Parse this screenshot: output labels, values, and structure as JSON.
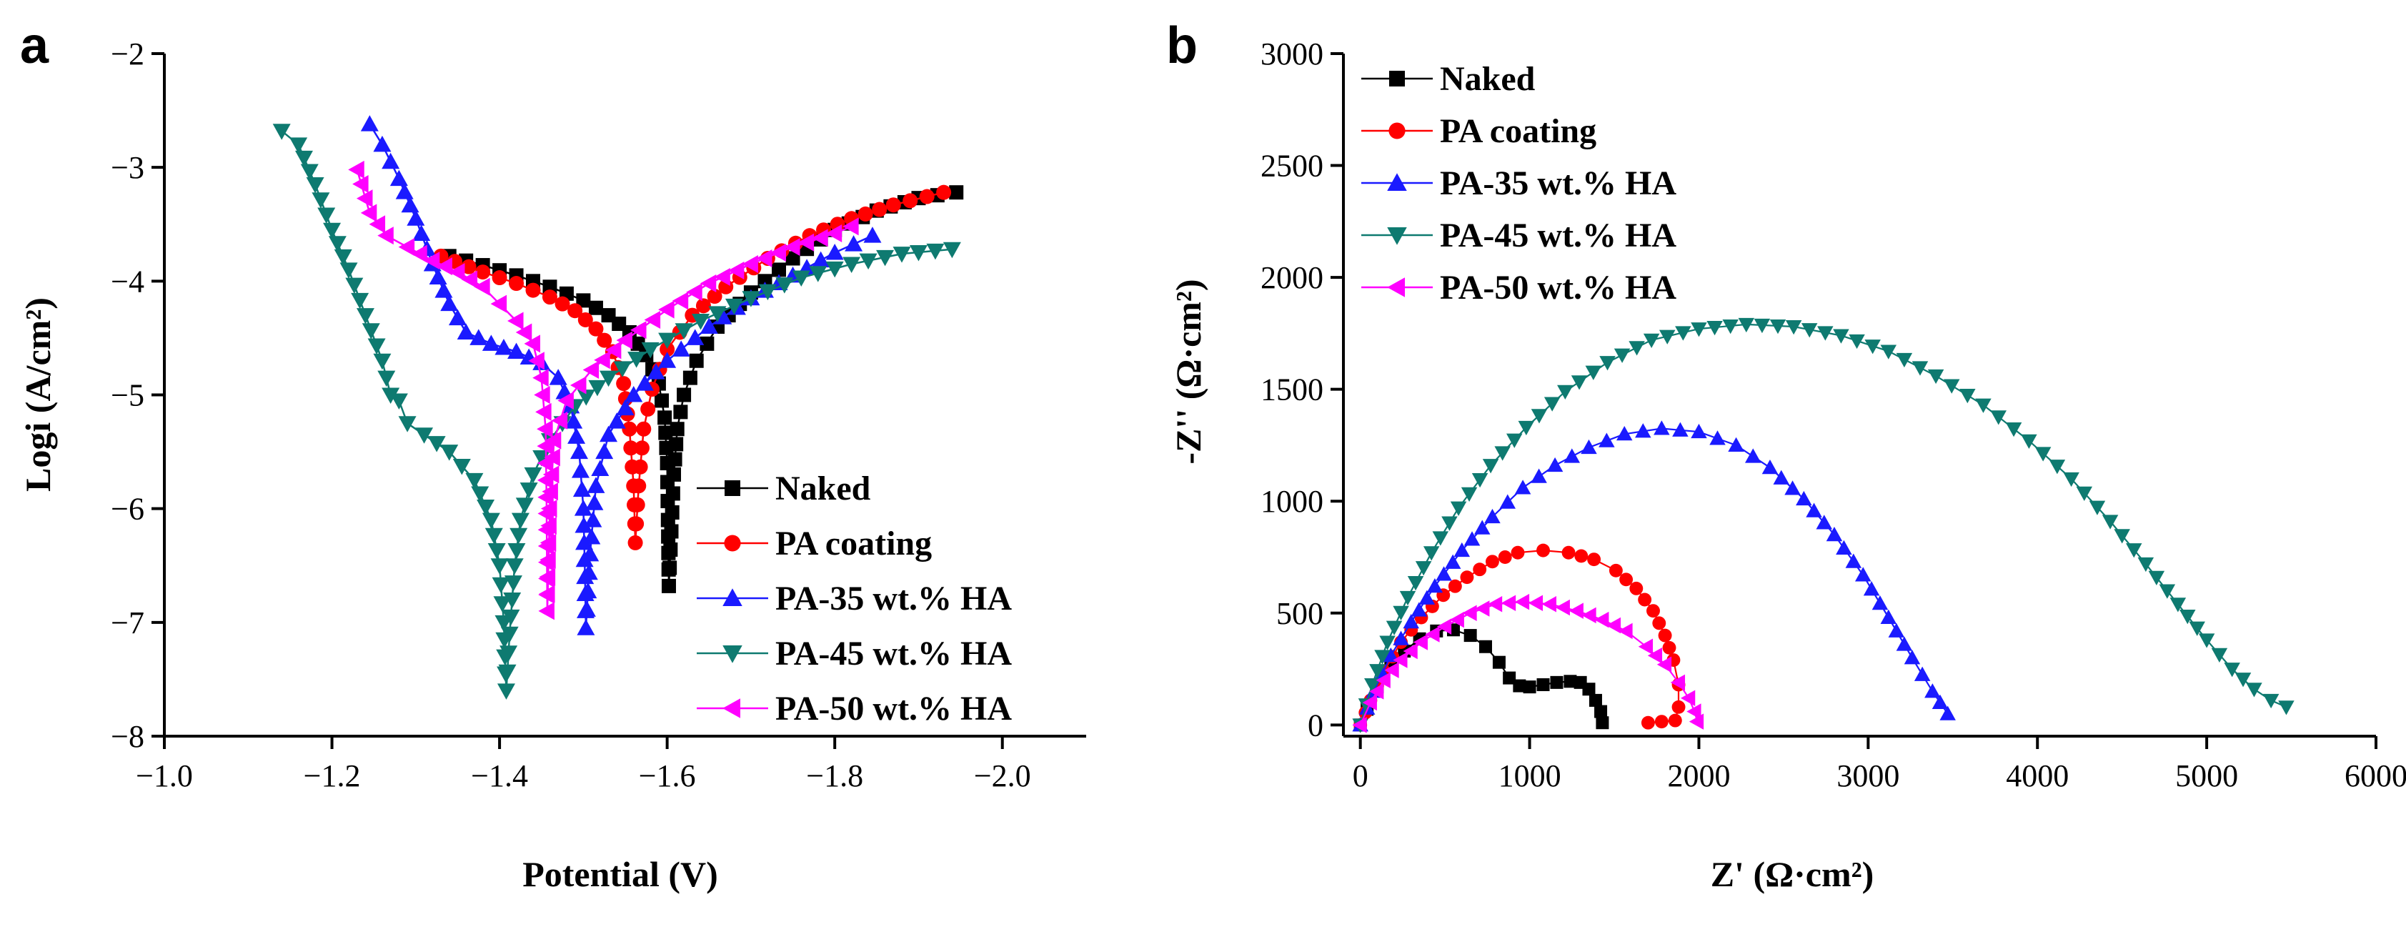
{
  "colors": {
    "naked": "#000000",
    "pa": "#ff0000",
    "pa35": "#1a1aff",
    "pa45": "#0e7a70",
    "pa50": "#ff00ff"
  },
  "chart_data": [
    {
      "id": "a",
      "panel_label": "a",
      "type": "line",
      "title": "",
      "xlabel": "Potential (V)",
      "ylabel": "Logi (A/cm²)",
      "xlim": [
        -1.0,
        -2.1
      ],
      "ylim": [
        -8,
        -2
      ],
      "xticks": [
        -1.0,
        -1.2,
        -1.4,
        -1.6,
        -1.8,
        -2.0
      ],
      "xtick_labels": [
        "−1.0",
        "−1.2",
        "−1.4",
        "−1.6",
        "−1.8",
        "−2.0"
      ],
      "yticks": [
        -8,
        -7,
        -6,
        -5,
        -4,
        -3,
        -2
      ],
      "ytick_labels": [
        "−8",
        "−7",
        "−6",
        "−5",
        "−4",
        "−3",
        "−2"
      ],
      "legend_position": "lower-right",
      "series": [
        {
          "name": "Naked",
          "color_key": "naked",
          "marker": "square",
          "points": [
            [
              -1.34,
              -3.78
            ],
            [
              -1.38,
              -3.86
            ],
            [
              -1.42,
              -3.95
            ],
            [
              -1.46,
              -4.05
            ],
            [
              -1.5,
              -4.17
            ],
            [
              -1.53,
              -4.3
            ],
            [
              -1.555,
              -4.45
            ],
            [
              -1.575,
              -4.65
            ],
            [
              -1.59,
              -4.9
            ],
            [
              -1.597,
              -5.2
            ],
            [
              -1.6,
              -5.6
            ],
            [
              -1.601,
              -6.1
            ],
            [
              -1.602,
              -6.68
            ],
            [
              -1.605,
              -6.2
            ],
            [
              -1.608,
              -5.7
            ],
            [
              -1.612,
              -5.3
            ],
            [
              -1.62,
              -5.0
            ],
            [
              -1.635,
              -4.7
            ],
            [
              -1.66,
              -4.4
            ],
            [
              -1.7,
              -4.1
            ],
            [
              -1.75,
              -3.8
            ],
            [
              -1.8,
              -3.55
            ],
            [
              -1.85,
              -3.38
            ],
            [
              -1.9,
              -3.27
            ],
            [
              -1.945,
              -3.22
            ]
          ]
        },
        {
          "name": "PA coating",
          "color_key": "pa",
          "marker": "circle",
          "points": [
            [
              -1.33,
              -3.78
            ],
            [
              -1.38,
              -3.92
            ],
            [
              -1.42,
              -4.02
            ],
            [
              -1.46,
              -4.14
            ],
            [
              -1.49,
              -4.26
            ],
            [
              -1.515,
              -4.42
            ],
            [
              -1.535,
              -4.62
            ],
            [
              -1.548,
              -4.9
            ],
            [
              -1.555,
              -5.3
            ],
            [
              -1.56,
              -5.8
            ],
            [
              -1.562,
              -6.3
            ],
            [
              -1.566,
              -5.8
            ],
            [
              -1.572,
              -5.3
            ],
            [
              -1.582,
              -4.95
            ],
            [
              -1.6,
              -4.6
            ],
            [
              -1.63,
              -4.3
            ],
            [
              -1.67,
              -4.05
            ],
            [
              -1.72,
              -3.8
            ],
            [
              -1.77,
              -3.6
            ],
            [
              -1.82,
              -3.45
            ],
            [
              -1.87,
              -3.33
            ],
            [
              -1.93,
              -3.22
            ]
          ]
        },
        {
          "name": "PA-35 wt.% HA",
          "color_key": "pa35",
          "marker": "triangle-up",
          "points": [
            [
              -1.245,
              -2.62
            ],
            [
              -1.26,
              -2.8
            ],
            [
              -1.28,
              -3.1
            ],
            [
              -1.3,
              -3.45
            ],
            [
              -1.32,
              -3.85
            ],
            [
              -1.34,
              -4.2
            ],
            [
              -1.36,
              -4.45
            ],
            [
              -1.39,
              -4.55
            ],
            [
              -1.42,
              -4.62
            ],
            [
              -1.45,
              -4.72
            ],
            [
              -1.47,
              -4.85
            ],
            [
              -1.485,
              -5.1
            ],
            [
              -1.495,
              -5.5
            ],
            [
              -1.5,
              -6.0
            ],
            [
              -1.502,
              -6.6
            ],
            [
              -1.503,
              -7.05
            ],
            [
              -1.508,
              -6.4
            ],
            [
              -1.515,
              -5.8
            ],
            [
              -1.53,
              -5.35
            ],
            [
              -1.56,
              -5.0
            ],
            [
              -1.6,
              -4.7
            ],
            [
              -1.65,
              -4.4
            ],
            [
              -1.7,
              -4.15
            ],
            [
              -1.75,
              -3.95
            ],
            [
              -1.8,
              -3.75
            ],
            [
              -1.845,
              -3.6
            ]
          ]
        },
        {
          "name": "PA-45 wt.% HA",
          "color_key": "pa45",
          "marker": "triangle-down",
          "points": [
            [
              -1.14,
              -2.68
            ],
            [
              -1.16,
              -2.8
            ],
            [
              -1.18,
              -3.15
            ],
            [
              -1.2,
              -3.55
            ],
            [
              -1.22,
              -3.9
            ],
            [
              -1.24,
              -4.3
            ],
            [
              -1.26,
              -4.7
            ],
            [
              -1.27,
              -5.0
            ],
            [
              -1.28,
              -5.05
            ],
            [
              -1.29,
              -5.25
            ],
            [
              -1.31,
              -5.35
            ],
            [
              -1.34,
              -5.5
            ],
            [
              -1.37,
              -5.75
            ],
            [
              -1.39,
              -6.1
            ],
            [
              -1.4,
              -6.5
            ],
            [
              -1.405,
              -7.0
            ],
            [
              -1.408,
              -7.6
            ],
            [
              -1.412,
              -7.1
            ],
            [
              -1.418,
              -6.5
            ],
            [
              -1.425,
              -6.1
            ],
            [
              -1.44,
              -5.7
            ],
            [
              -1.46,
              -5.4
            ],
            [
              -1.49,
              -5.1
            ],
            [
              -1.53,
              -4.85
            ],
            [
              -1.58,
              -4.6
            ],
            [
              -1.64,
              -4.35
            ],
            [
              -1.7,
              -4.15
            ],
            [
              -1.76,
              -3.97
            ],
            [
              -1.82,
              -3.85
            ],
            [
              -1.88,
              -3.76
            ],
            [
              -1.94,
              -3.72
            ]
          ]
        },
        {
          "name": "PA-50 wt.% HA",
          "color_key": "pa50",
          "marker": "triangle-left",
          "points": [
            [
              -1.23,
              -3.02
            ],
            [
              -1.245,
              -3.4
            ],
            [
              -1.265,
              -3.6
            ],
            [
              -1.29,
              -3.7
            ],
            [
              -1.32,
              -3.82
            ],
            [
              -1.35,
              -3.92
            ],
            [
              -1.38,
              -4.05
            ],
            [
              -1.4,
              -4.2
            ],
            [
              -1.42,
              -4.35
            ],
            [
              -1.44,
              -4.55
            ],
            [
              -1.45,
              -4.85
            ],
            [
              -1.455,
              -5.3
            ],
            [
              -1.456,
              -5.9
            ],
            [
              -1.457,
              -6.9
            ],
            [
              -1.46,
              -6.0
            ],
            [
              -1.465,
              -5.4
            ],
            [
              -1.48,
              -5.05
            ],
            [
              -1.51,
              -4.78
            ],
            [
              -1.55,
              -4.52
            ],
            [
              -1.6,
              -4.25
            ],
            [
              -1.65,
              -4.02
            ],
            [
              -1.7,
              -3.85
            ],
            [
              -1.75,
              -3.7
            ],
            [
              -1.8,
              -3.58
            ],
            [
              -1.82,
              -3.52
            ]
          ]
        }
      ]
    },
    {
      "id": "b",
      "panel_label": "b",
      "type": "scatter",
      "title": "",
      "xlabel": "Z' (Ω·cm²)",
      "ylabel": "-Z'' (Ω·cm²)",
      "xlim": [
        -100,
        6000
      ],
      "ylim": [
        -50,
        3000
      ],
      "xticks": [
        0,
        1000,
        2000,
        3000,
        4000,
        5000,
        6000
      ],
      "xtick_labels": [
        "0",
        "1000",
        "2000",
        "3000",
        "4000",
        "5000",
        "6000"
      ],
      "yticks": [
        0,
        500,
        1000,
        1500,
        2000,
        2500,
        3000
      ],
      "ytick_labels": [
        "0",
        "500",
        "1000",
        "1500",
        "2000",
        "2500",
        "3000"
      ],
      "legend_position": "top-left",
      "series": [
        {
          "name": "Naked",
          "color_key": "naked",
          "marker": "square",
          "points": [
            [
              0,
              0
            ],
            [
              40,
              70
            ],
            [
              100,
              170
            ],
            [
              180,
              260
            ],
            [
              260,
              330
            ],
            [
              350,
              385
            ],
            [
              450,
              420
            ],
            [
              550,
              425
            ],
            [
              650,
              400
            ],
            [
              740,
              350
            ],
            [
              820,
              280
            ],
            [
              880,
              210
            ],
            [
              940,
              175
            ],
            [
              1000,
              170
            ],
            [
              1080,
              180
            ],
            [
              1160,
              190
            ],
            [
              1240,
              195
            ],
            [
              1300,
              190
            ],
            [
              1350,
              160
            ],
            [
              1390,
              110
            ],
            [
              1420,
              60
            ],
            [
              1430,
              10
            ]
          ]
        },
        {
          "name": "PA coating",
          "color_key": "pa",
          "marker": "circle",
          "points": [
            [
              0,
              0
            ],
            [
              60,
              110
            ],
            [
              140,
              240
            ],
            [
              240,
              370
            ],
            [
              360,
              480
            ],
            [
              490,
              580
            ],
            [
              630,
              660
            ],
            [
              780,
              730
            ],
            [
              930,
              770
            ],
            [
              1080,
              780
            ],
            [
              1230,
              770
            ],
            [
              1380,
              740
            ],
            [
              1510,
              690
            ],
            [
              1630,
              610
            ],
            [
              1730,
              510
            ],
            [
              1800,
              400
            ],
            [
              1850,
              290
            ],
            [
              1880,
              180
            ],
            [
              1880,
              80
            ],
            [
              1860,
              20
            ],
            [
              1700,
              10
            ]
          ]
        },
        {
          "name": "PA-35 wt.% HA",
          "color_key": "pa35",
          "marker": "triangle-up",
          "points": [
            [
              0,
              0
            ],
            [
              80,
              150
            ],
            [
              180,
              310
            ],
            [
              300,
              460
            ],
            [
              440,
              620
            ],
            [
              600,
              780
            ],
            [
              780,
              930
            ],
            [
              960,
              1060
            ],
            [
              1150,
              1160
            ],
            [
              1350,
              1240
            ],
            [
              1560,
              1300
            ],
            [
              1780,
              1325
            ],
            [
              2000,
              1310
            ],
            [
              2220,
              1250
            ],
            [
              2420,
              1150
            ],
            [
              2620,
              1010
            ],
            [
              2800,
              850
            ],
            [
              2970,
              670
            ],
            [
              3120,
              480
            ],
            [
              3260,
              300
            ],
            [
              3380,
              150
            ],
            [
              3470,
              50
            ]
          ]
        },
        {
          "name": "PA-45 wt.% HA",
          "color_key": "pa45",
          "marker": "triangle-down",
          "points": [
            [
              0,
              0
            ],
            [
              70,
              180
            ],
            [
              160,
              370
            ],
            [
              280,
              570
            ],
            [
              420,
              770
            ],
            [
              580,
              970
            ],
            [
              770,
              1160
            ],
            [
              980,
              1330
            ],
            [
              1210,
              1490
            ],
            [
              1460,
              1620
            ],
            [
              1720,
              1720
            ],
            [
              2000,
              1770
            ],
            [
              2280,
              1790
            ],
            [
              2560,
              1780
            ],
            [
              2840,
              1740
            ],
            [
              3120,
              1670
            ],
            [
              3400,
              1560
            ],
            [
              3680,
              1430
            ],
            [
              3950,
              1270
            ],
            [
              4200,
              1100
            ],
            [
              4430,
              910
            ],
            [
              4640,
              720
            ],
            [
              4830,
              540
            ],
            [
              5000,
              380
            ],
            [
              5150,
              250
            ],
            [
              5280,
              160
            ],
            [
              5380,
              110
            ],
            [
              5470,
              80
            ]
          ]
        },
        {
          "name": "PA-50 wt.% HA",
          "color_key": "pa50",
          "marker": "triangle-left",
          "points": [
            [
              0,
              0
            ],
            [
              60,
              100
            ],
            [
              140,
              200
            ],
            [
              240,
              290
            ],
            [
              360,
              370
            ],
            [
              500,
              440
            ],
            [
              650,
              500
            ],
            [
              800,
              540
            ],
            [
              960,
              550
            ],
            [
              1120,
              540
            ],
            [
              1280,
              510
            ],
            [
              1430,
              470
            ],
            [
              1570,
              420
            ],
            [
              1690,
              350
            ],
            [
              1800,
              270
            ],
            [
              1880,
              190
            ],
            [
              1940,
              120
            ],
            [
              1975,
              60
            ],
            [
              1990,
              15
            ]
          ]
        }
      ]
    }
  ]
}
